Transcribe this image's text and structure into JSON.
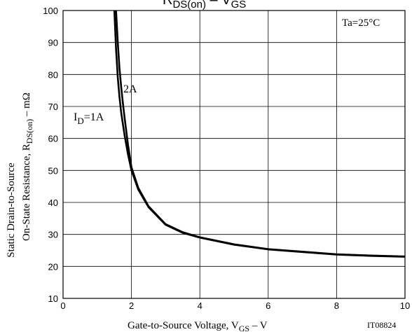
{
  "chart_data": {
    "type": "line",
    "title_parts": {
      "r": "R",
      "r_sub": "DS(on)",
      "sep": " – ",
      "v": "V",
      "v_sub": "GS"
    },
    "xlabel_parts": {
      "main": "Gate-to-Source Voltage, V",
      "sub": "GS",
      "unit": " – V"
    },
    "ylabel_line1": "Static Drain-to-Source",
    "ylabel_line2_parts": {
      "main": "On-State Resistance, R",
      "sub": "DS(on)",
      "unit": " – mΩ"
    },
    "xlim": [
      0,
      10
    ],
    "ylim": [
      10,
      100
    ],
    "x_ticks": [
      0,
      2,
      4,
      6,
      8,
      10
    ],
    "y_ticks": [
      10,
      20,
      30,
      40,
      50,
      60,
      70,
      80,
      90,
      100
    ],
    "condition_label": "Ta=25°C",
    "figure_id": "IT08824",
    "grid": true,
    "series": [
      {
        "name": "1A",
        "label_parts": {
          "main": "I",
          "sub": "D",
          "rest": "=1A"
        },
        "x": [
          1.5,
          1.55,
          1.6,
          1.65,
          1.7,
          1.8,
          1.9,
          2.0,
          2.2,
          2.5,
          3.0,
          3.5,
          4.0,
          5.0,
          6.0,
          7.0,
          8.0,
          9.0,
          10.0
        ],
        "y": [
          100,
          88,
          79,
          73,
          68,
          61,
          55,
          50,
          44,
          38.5,
          33,
          30.5,
          29,
          26.8,
          25.3,
          24.5,
          23.7,
          23.3,
          23.0
        ]
      },
      {
        "name": "2A",
        "label_parts": {
          "main": "2A"
        },
        "x": [
          1.55,
          1.6,
          1.65,
          1.7,
          1.75,
          1.8,
          1.9,
          2.0,
          2.2,
          2.5,
          3.0,
          3.5,
          4.0,
          5.0,
          6.0,
          7.0,
          8.0,
          9.0,
          10.0
        ],
        "y": [
          100,
          90,
          82,
          76,
          71,
          66.5,
          58,
          51,
          44.5,
          38.8,
          33.2,
          30.7,
          29.1,
          26.9,
          25.4,
          24.6,
          23.8,
          23.4,
          23.1
        ]
      }
    ]
  }
}
